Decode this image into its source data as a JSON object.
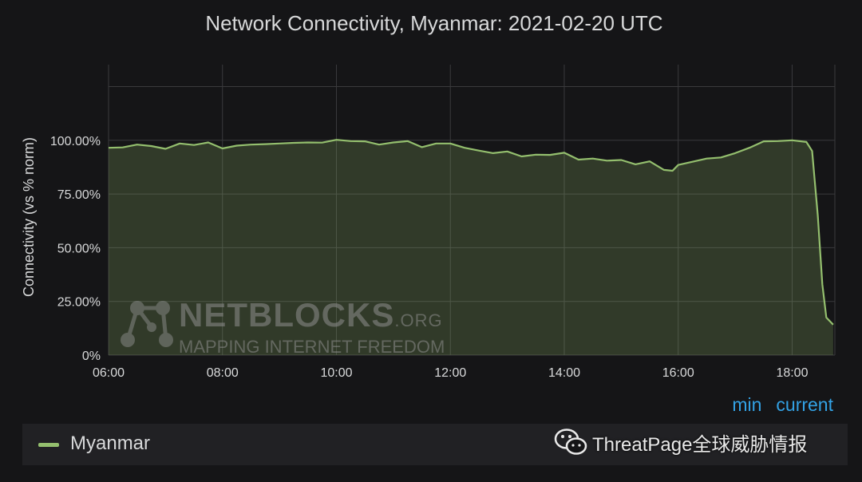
{
  "chart_data": {
    "type": "area",
    "title": "Network Connectivity, Myanmar: 2021-02-20 UTC",
    "ylabel": "Connectivity (vs % norm)",
    "xlabel": "",
    "xlim": [
      6.0,
      18.75
    ],
    "ylim": [
      0,
      130
    ],
    "grid": true,
    "xticks": [
      {
        "value": 6,
        "label": "06:00"
      },
      {
        "value": 8,
        "label": "08:00"
      },
      {
        "value": 10,
        "label": "10:00"
      },
      {
        "value": 12,
        "label": "12:00"
      },
      {
        "value": 14,
        "label": "14:00"
      },
      {
        "value": 16,
        "label": "16:00"
      },
      {
        "value": 18,
        "label": "18:00"
      }
    ],
    "yticks": [
      {
        "value": 0,
        "label": "0%"
      },
      {
        "value": 25,
        "label": "25.00%"
      },
      {
        "value": 50,
        "label": "50.00%"
      },
      {
        "value": 75,
        "label": "75.00%"
      },
      {
        "value": 100,
        "label": "100.00%"
      },
      {
        "value": 125,
        "label": ""
      }
    ],
    "series": [
      {
        "name": "Myanmar",
        "color": "#94bf6e",
        "points": [
          [
            6.0,
            96.5
          ],
          [
            6.25,
            96.7
          ],
          [
            6.5,
            98.0
          ],
          [
            6.75,
            97.3
          ],
          [
            7.0,
            96.0
          ],
          [
            7.25,
            98.5
          ],
          [
            7.5,
            97.8
          ],
          [
            7.75,
            99.0
          ],
          [
            8.0,
            96.2
          ],
          [
            8.25,
            97.5
          ],
          [
            8.5,
            98.0
          ],
          [
            8.75,
            98.2
          ],
          [
            9.0,
            98.5
          ],
          [
            9.25,
            98.8
          ],
          [
            9.5,
            99.0
          ],
          [
            9.75,
            98.9
          ],
          [
            10.0,
            100.2
          ],
          [
            10.25,
            99.6
          ],
          [
            10.5,
            99.5
          ],
          [
            10.75,
            98.0
          ],
          [
            11.0,
            99.0
          ],
          [
            11.25,
            99.6
          ],
          [
            11.5,
            96.8
          ],
          [
            11.75,
            98.5
          ],
          [
            12.0,
            98.5
          ],
          [
            12.25,
            96.5
          ],
          [
            12.5,
            95.2
          ],
          [
            12.75,
            94.0
          ],
          [
            13.0,
            94.8
          ],
          [
            13.25,
            92.5
          ],
          [
            13.5,
            93.3
          ],
          [
            13.75,
            93.2
          ],
          [
            14.0,
            94.2
          ],
          [
            14.25,
            91.0
          ],
          [
            14.5,
            91.5
          ],
          [
            14.75,
            90.5
          ],
          [
            15.0,
            90.8
          ],
          [
            15.25,
            88.8
          ],
          [
            15.5,
            90.2
          ],
          [
            15.75,
            86.2
          ],
          [
            15.9,
            85.8
          ],
          [
            16.0,
            88.5
          ],
          [
            16.25,
            90.0
          ],
          [
            16.5,
            91.5
          ],
          [
            16.75,
            92.0
          ],
          [
            17.0,
            94.0
          ],
          [
            17.25,
            96.5
          ],
          [
            17.5,
            99.5
          ],
          [
            17.75,
            99.6
          ],
          [
            18.0,
            100.0
          ],
          [
            18.25,
            99.2
          ],
          [
            18.35,
            95.0
          ],
          [
            18.45,
            65.0
          ],
          [
            18.53,
            33.0
          ],
          [
            18.6,
            17.5
          ],
          [
            18.72,
            14.2
          ]
        ]
      }
    ]
  },
  "legend": {
    "headers": [
      "min",
      "current"
    ],
    "series_label": "Myanmar"
  },
  "watermarks": {
    "brand_name": "NETBLOCKS",
    "brand_suffix": ".ORG",
    "brand_tagline": "MAPPING INTERNET FREEDOM",
    "corner_text": "ThreatPage全球威胁情报",
    "corner_icon": "wechat-icon"
  }
}
